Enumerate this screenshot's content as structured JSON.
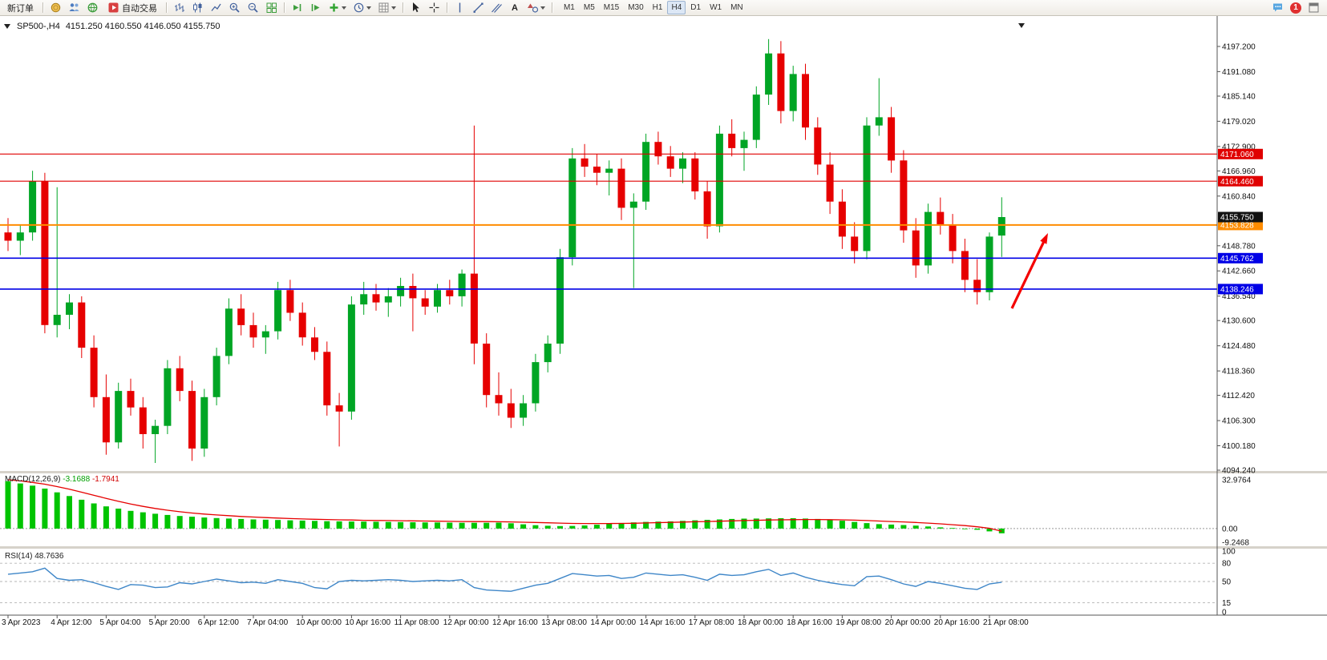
{
  "colors": {
    "candle_up": "#00A524",
    "candle_down": "#E60000",
    "macd_histogram": "#00C400",
    "macd_signal": "#E60000",
    "rsi_line": "#3E86C8",
    "arrow": "#F40000",
    "level_red": "#E00000",
    "level_orange": "#FF8C00",
    "level_blue": "#0000E6",
    "current_price_tag": "#111111"
  },
  "toolbar": {
    "new_order_label": "新订单",
    "auto_trading_label": "自动交易",
    "text_tool_label": "A",
    "timeframes": [
      "M1",
      "M5",
      "M15",
      "M30",
      "H1",
      "H4",
      "D1",
      "W1",
      "MN"
    ],
    "active_timeframe": "H4",
    "notification_count": "1"
  },
  "chart": {
    "title": "SP500-,H4",
    "ohlc": "4151.250 4160.550 4146.050 4155.750"
  },
  "chart_data": [
    {
      "type": "candlestick",
      "symbol": "SP500-",
      "timeframe": "H4",
      "title": "SP500-,H4",
      "current_bar_ohlc": [
        4151.25,
        4160.55,
        4146.05,
        4155.75
      ],
      "current_price": 4155.75,
      "current_price_label": "4155.750",
      "ylim": [
        4094.1,
        4203.8
      ],
      "y_axis_labels": [
        "4197.200",
        "4191.080",
        "4185.140",
        "4179.020",
        "4172.900",
        "4166.960",
        "4160.840",
        "4148.780",
        "4142.660",
        "4136.540",
        "4130.600",
        "4124.480",
        "4118.360",
        "4112.420",
        "4106.300",
        "4100.180",
        "4094.240"
      ],
      "x_labels": [
        "3 Apr 2023",
        "4 Apr 12:00",
        "5 Apr 04:00",
        "5 Apr 20:00",
        "6 Apr 12:00",
        "7 Apr 04:00",
        "10 Apr 00:00",
        "10 Apr 16:00",
        "11 Apr 08:00",
        "12 Apr 00:00",
        "12 Apr 16:00",
        "13 Apr 08:00",
        "14 Apr 00:00",
        "14 Apr 16:00",
        "17 Apr 08:00",
        "18 Apr 00:00",
        "18 Apr 16:00",
        "19 Apr 08:00",
        "20 Apr 00:00",
        "20 Apr 16:00",
        "21 Apr 08:00"
      ],
      "bars_per_label": 4,
      "hlines": [
        {
          "price": 4171.06,
          "label": "4171.060",
          "color": "#E00000",
          "width": 1.1
        },
        {
          "price": 4164.46,
          "label": "4164.460",
          "color": "#E00000",
          "width": 1.1
        },
        {
          "price": 4153.828,
          "label": "4153.828",
          "color": "#FF8C00",
          "width": 2.0
        },
        {
          "price": 4145.762,
          "label": "4145.762",
          "color": "#0000E6",
          "width": 1.6
        },
        {
          "price": 4138.246,
          "label": "4138.246",
          "color": "#0000E6",
          "width": 1.6
        }
      ],
      "annotations": [
        {
          "type": "arrow",
          "color": "#F40000",
          "from": [
            1262,
            385
          ],
          "to": [
            1307,
            291
          ]
        }
      ],
      "candles": [
        [
          4152.0,
          4155.5,
          4147.5,
          4150.0
        ],
        [
          4150.0,
          4154.0,
          4146.5,
          4152.0
        ],
        [
          4152.0,
          4167.0,
          4150.0,
          4164.5
        ],
        [
          4164.5,
          4166.5,
          4127.5,
          4129.5
        ],
        [
          4129.5,
          4163.0,
          4126.5,
          4132.0
        ],
        [
          4132.0,
          4137.0,
          4128.5,
          4135.0
        ],
        [
          4135.0,
          4136.5,
          4121.5,
          4124.0
        ],
        [
          4124.0,
          4127.0,
          4109.5,
          4112.0
        ],
        [
          4112.0,
          4117.5,
          4098.0,
          4101.0
        ],
        [
          4101.0,
          4115.5,
          4099.5,
          4113.5
        ],
        [
          4113.5,
          4116.5,
          4107.5,
          4109.5
        ],
        [
          4109.5,
          4112.0,
          4099.5,
          4103.0
        ],
        [
          4103.0,
          4106.5,
          4096.0,
          4105.0
        ],
        [
          4105.0,
          4121.0,
          4103.0,
          4119.0
        ],
        [
          4119.0,
          4122.0,
          4111.0,
          4113.5
        ],
        [
          4113.5,
          4116.0,
          4096.5,
          4099.5
        ],
        [
          4099.5,
          4114.0,
          4097.5,
          4112.0
        ],
        [
          4112.0,
          4124.0,
          4110.0,
          4122.0
        ],
        [
          4122.0,
          4136.0,
          4120.0,
          4133.5
        ],
        [
          4133.5,
          4137.0,
          4127.0,
          4129.5
        ],
        [
          4129.5,
          4132.5,
          4124.0,
          4126.5
        ],
        [
          4126.5,
          4129.5,
          4122.5,
          4128.0
        ],
        [
          4128.0,
          4140.0,
          4126.0,
          4138.0
        ],
        [
          4138.0,
          4140.5,
          4130.5,
          4132.5
        ],
        [
          4132.5,
          4135.0,
          4124.5,
          4126.5
        ],
        [
          4126.5,
          4129.0,
          4121.0,
          4123.0
        ],
        [
          4123.0,
          4125.5,
          4107.5,
          4110.0
        ],
        [
          4110.0,
          4113.0,
          4100.0,
          4108.5
        ],
        [
          4108.5,
          4136.5,
          4106.5,
          4134.5
        ],
        [
          4134.5,
          4140.0,
          4132.0,
          4137.0
        ],
        [
          4137.0,
          4139.5,
          4133.0,
          4135.0
        ],
        [
          4135.0,
          4138.5,
          4131.5,
          4136.5
        ],
        [
          4136.5,
          4141.0,
          4134.0,
          4139.0
        ],
        [
          4139.0,
          4142.0,
          4128.0,
          4136.0
        ],
        [
          4136.0,
          4138.0,
          4132.0,
          4134.0
        ],
        [
          4134.0,
          4139.5,
          4132.5,
          4138.0
        ],
        [
          4138.0,
          4140.5,
          4134.5,
          4136.5
        ],
        [
          4136.5,
          4143.0,
          4134.0,
          4142.0
        ],
        [
          4142.0,
          4178.0,
          4120.0,
          4125.0
        ],
        [
          4125.0,
          4127.5,
          4109.5,
          4112.5
        ],
        [
          4112.5,
          4118.0,
          4107.5,
          4110.5
        ],
        [
          4110.5,
          4114.0,
          4104.5,
          4107.0
        ],
        [
          4107.0,
          4112.5,
          4105.0,
          4110.5
        ],
        [
          4110.5,
          4122.5,
          4108.5,
          4120.5
        ],
        [
          4120.5,
          4127.0,
          4118.0,
          4125.0
        ],
        [
          4125.0,
          4148.0,
          4122.5,
          4146.0
        ],
        [
          4146.0,
          4172.5,
          4144.0,
          4170.0
        ],
        [
          4170.0,
          4173.5,
          4165.5,
          4168.0
        ],
        [
          4168.0,
          4171.0,
          4163.5,
          4166.5
        ],
        [
          4166.5,
          4169.5,
          4161.0,
          4167.5
        ],
        [
          4167.5,
          4170.0,
          4155.0,
          4158.0
        ],
        [
          4158.0,
          4161.5,
          4138.5,
          4159.5
        ],
        [
          4159.5,
          4176.0,
          4157.5,
          4174.0
        ],
        [
          4174.0,
          4176.5,
          4168.5,
          4170.5
        ],
        [
          4170.5,
          4173.0,
          4165.5,
          4167.5
        ],
        [
          4167.5,
          4171.5,
          4164.0,
          4170.0
        ],
        [
          4170.0,
          4171.5,
          4160.0,
          4162.0
        ],
        [
          4162.0,
          4164.5,
          4150.5,
          4153.5
        ],
        [
          4153.5,
          4178.0,
          4152.0,
          4176.0
        ],
        [
          4176.0,
          4179.5,
          4170.5,
          4172.5
        ],
        [
          4172.5,
          4176.5,
          4167.0,
          4174.5
        ],
        [
          4174.5,
          4187.5,
          4172.5,
          4185.5
        ],
        [
          4185.5,
          4199.0,
          4183.0,
          4195.5
        ],
        [
          4195.5,
          4198.5,
          4178.5,
          4181.5
        ],
        [
          4181.5,
          4192.5,
          4179.0,
          4190.5
        ],
        [
          4190.5,
          4193.0,
          4174.5,
          4177.5
        ],
        [
          4177.5,
          4180.0,
          4166.0,
          4168.5
        ],
        [
          4168.5,
          4171.5,
          4156.5,
          4159.5
        ],
        [
          4159.5,
          4162.5,
          4148.0,
          4151.0
        ],
        [
          4151.0,
          4154.5,
          4144.5,
          4147.5
        ],
        [
          4147.5,
          4180.0,
          4145.5,
          4178.0
        ],
        [
          4178.0,
          4189.5,
          4175.5,
          4180.0
        ],
        [
          4180.0,
          4182.5,
          4166.5,
          4169.5
        ],
        [
          4169.5,
          4172.0,
          4149.5,
          4152.5
        ],
        [
          4152.5,
          4155.5,
          4141.0,
          4144.0
        ],
        [
          4144.0,
          4159.0,
          4142.0,
          4157.0
        ],
        [
          4157.0,
          4160.5,
          4151.5,
          4154.0
        ],
        [
          4154.0,
          4156.5,
          4144.5,
          4147.5
        ],
        [
          4147.5,
          4150.5,
          4137.5,
          4140.5
        ],
        [
          4140.5,
          4145.5,
          4134.5,
          4137.5
        ],
        [
          4137.5,
          4152.0,
          4135.5,
          4151.0
        ],
        [
          4151.25,
          4160.55,
          4146.05,
          4155.75
        ]
      ]
    },
    {
      "type": "macd_histogram",
      "title": "MACD(12,26,9)",
      "main_value_label": "-3.1688",
      "signal_value_label": "-1.7941",
      "y_ticks": [
        "32.9764",
        "0.00",
        "-9.2468"
      ],
      "ylim": [
        -9.2468,
        32.9764
      ],
      "histogram": [
        32.0,
        30.5,
        29.0,
        27.0,
        24.5,
        22.0,
        19.5,
        17.0,
        15.0,
        13.5,
        12.0,
        11.0,
        10.0,
        9.2,
        8.5,
        8.0,
        7.5,
        7.1,
        6.8,
        6.5,
        6.2,
        6.0,
        5.8,
        5.6,
        5.4,
        5.2,
        5.0,
        4.9,
        4.8,
        4.7,
        4.6,
        4.5,
        4.4,
        4.3,
        4.2,
        4.1,
        4.0,
        3.9,
        3.9,
        3.9,
        4.0,
        3.6,
        2.9,
        2.3,
        1.9,
        1.7,
        1.8,
        2.1,
        2.6,
        3.2,
        3.8,
        4.2,
        4.5,
        4.7,
        4.9,
        5.2,
        5.6,
        5.9,
        6.2,
        6.5,
        6.7,
        6.8,
        6.9,
        7.0,
        7.0,
        6.8,
        6.5,
        6.0,
        5.3,
        4.5,
        3.7,
        3.0,
        2.7,
        2.4,
        2.0,
        1.4,
        0.8,
        0.4,
        0.0,
        -0.8,
        -1.9,
        -3.2
      ],
      "signal": [
        33.0,
        32.2,
        31.2,
        30.0,
        28.4,
        26.6,
        24.6,
        22.5,
        20.4,
        18.4,
        16.6,
        15.0,
        13.6,
        12.4,
        11.4,
        10.5,
        9.8,
        9.2,
        8.7,
        8.2,
        7.8,
        7.4,
        7.1,
        6.8,
        6.5,
        6.3,
        6.1,
        5.9,
        5.8,
        5.6,
        5.5,
        5.4,
        5.3,
        5.2,
        5.1,
        5.0,
        4.9,
        4.8,
        4.7,
        4.7,
        4.6,
        4.5,
        4.3,
        4.1,
        3.9,
        3.7,
        3.5,
        3.4,
        3.4,
        3.4,
        3.5,
        3.6,
        3.8,
        4.0,
        4.2,
        4.4,
        4.6,
        4.8,
        5.0,
        5.2,
        5.4,
        5.6,
        5.8,
        5.9,
        6.0,
        6.1,
        6.1,
        6.0,
        5.9,
        5.7,
        5.4,
        5.1,
        4.8,
        4.5,
        4.1,
        3.7,
        3.2,
        2.6,
        2.0,
        1.2,
        0.2,
        -1.8
      ]
    },
    {
      "type": "rsi_line",
      "title": "RSI(14)",
      "value_label": "48.7636",
      "y_ticks": [
        "100",
        "80",
        "50",
        "15",
        "0"
      ],
      "levels": [
        80,
        50,
        15
      ],
      "ylim": [
        0,
        100
      ],
      "series": [
        62,
        64,
        66,
        72,
        55,
        52,
        53,
        48,
        42,
        37,
        45,
        44,
        40,
        41,
        48,
        46,
        50,
        54,
        51,
        48,
        49,
        47,
        53,
        50,
        47,
        40,
        38,
        50,
        52,
        51,
        52,
        53,
        52,
        50,
        51,
        52,
        51,
        53,
        40,
        36,
        35,
        34,
        39,
        44,
        47,
        55,
        63,
        61,
        59,
        60,
        55,
        57,
        64,
        62,
        60,
        61,
        57,
        52,
        62,
        60,
        61,
        66,
        70,
        60,
        64,
        57,
        52,
        48,
        45,
        43,
        58,
        59,
        53,
        46,
        42,
        50,
        47,
        43,
        39,
        37,
        46,
        48.7636
      ]
    }
  ]
}
